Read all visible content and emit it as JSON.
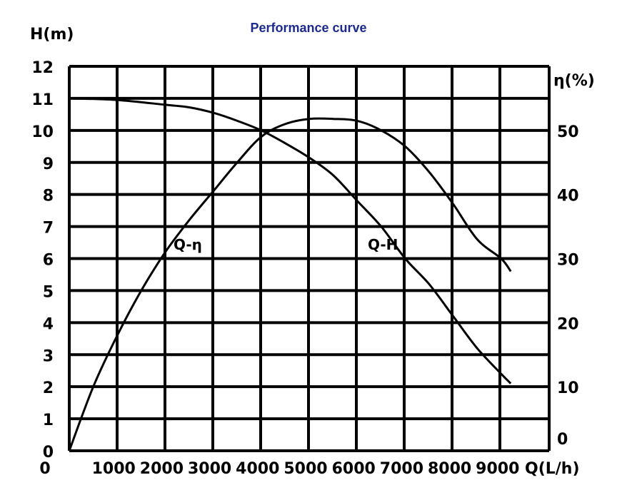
{
  "chart_data": {
    "type": "line",
    "title": "Performance curve",
    "y_left_label": "H(m)",
    "y_right_label": "η(%)",
    "x_label": "Q(L/h)",
    "x_tick_labels": [
      "1000",
      "2000",
      "3000",
      "4000",
      "5000",
      "6000",
      "7000",
      "8000",
      "9000"
    ],
    "y_left_tick_labels": [
      "0",
      "1",
      "2",
      "3",
      "4",
      "5",
      "6",
      "7",
      "8",
      "9",
      "10",
      "11",
      "12"
    ],
    "y_right_tick_labels": [
      "0",
      "10",
      "20",
      "30",
      "40",
      "50"
    ],
    "xlim": [
      0,
      9000
    ],
    "y_left_lim": [
      0,
      12
    ],
    "y_right_lim": [
      0,
      60
    ],
    "grid": true,
    "series": [
      {
        "name": "Q-H",
        "axis": "left",
        "x": [
          0,
          1000,
          2000,
          2500,
          3000,
          3500,
          4000,
          4500,
          5000,
          5500,
          6000,
          6500,
          7000,
          7500,
          8000,
          8500,
          9000,
          9200
        ],
        "y": [
          11,
          10.95,
          10.8,
          10.72,
          10.55,
          10.3,
          10.0,
          9.6,
          9.15,
          8.6,
          7.8,
          7.0,
          6.0,
          5.2,
          4.2,
          3.2,
          2.4,
          2.1
        ]
      },
      {
        "name": "Q-η",
        "axis": "right",
        "x": [
          0,
          500,
          1000,
          1500,
          2000,
          2500,
          3000,
          3500,
          4000,
          4500,
          5000,
          5500,
          6000,
          6500,
          7000,
          7500,
          8000,
          8500,
          9000,
          9200
        ],
        "y": [
          0,
          10,
          18,
          25,
          31,
          36,
          40.5,
          45,
          49,
          51,
          51.8,
          51.8,
          51.5,
          50,
          47.5,
          43.5,
          38.5,
          33,
          30,
          28
        ]
      }
    ]
  }
}
